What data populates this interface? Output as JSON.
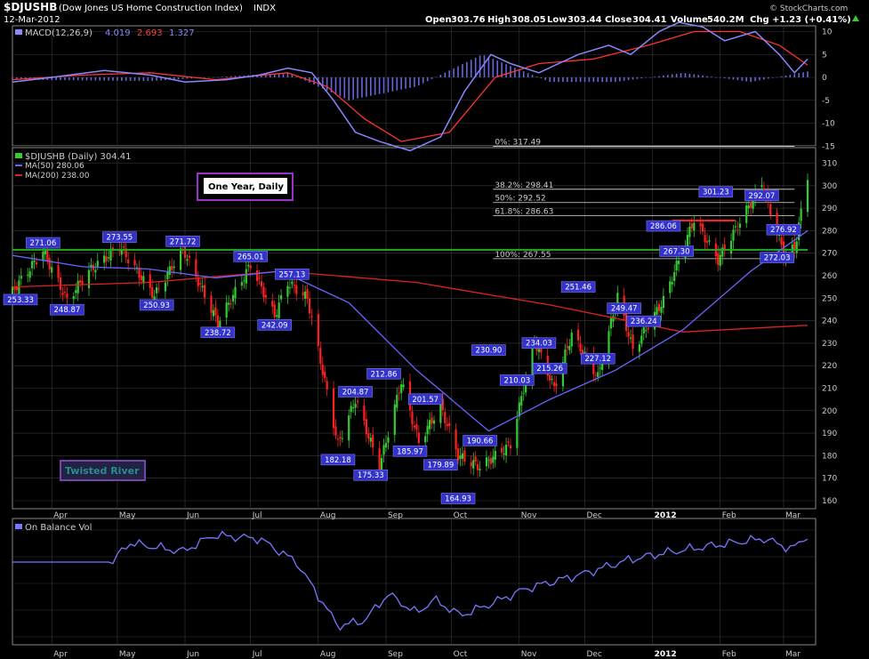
{
  "header": {
    "symbol": "$DJUSHB",
    "name": "(Dow Jones US Home Construction Index)",
    "exchange": "INDX",
    "date": "12-Mar-2012",
    "open_label": "Open",
    "open": "303.76",
    "high_label": "High",
    "high": "308.05",
    "low_label": "Low",
    "low": "303.44",
    "close_label": "Close",
    "close": "304.41",
    "volume_label": "Volume",
    "volume": "540.2M",
    "chg_label": "Chg",
    "chg": "+1.23 (+0.41%)",
    "watermark": "© StockCharts.com"
  },
  "colors": {
    "price_up": "#33cc33",
    "price_down": "#ff2020",
    "ma50": "#6666ff",
    "ma200": "#dd2222",
    "support": "#22aa22",
    "resistance": "#ff2020",
    "tag_bg": "#3333cc",
    "macd": "#8888ff",
    "signal": "#ff3333",
    "hist": "#6666dd",
    "obv": "#7777ff",
    "grid": "#3a3a3a",
    "frame": "#888888"
  },
  "chart_data": [
    {
      "type": "line",
      "panel": "macd",
      "title": "MACD(12,26,9)",
      "values_text": [
        "4.019",
        "2.693",
        "1.327"
      ],
      "ylim": [
        -18,
        13
      ],
      "y_ticks": [
        10,
        5,
        0,
        -5,
        -10,
        -15
      ],
      "series": [
        {
          "name": "MACD",
          "x": [
            "2011-03-14",
            "2011-04-01",
            "2011-04-25",
            "2011-05-16",
            "2011-06-01",
            "2011-06-20",
            "2011-07-05",
            "2011-07-18",
            "2011-07-29",
            "2011-08-08",
            "2011-08-18",
            "2011-08-29",
            "2011-09-12",
            "2011-09-26",
            "2011-10-07",
            "2011-10-19",
            "2011-10-28",
            "2011-11-10",
            "2011-11-28",
            "2011-12-12",
            "2011-12-22",
            "2012-01-04",
            "2012-01-13",
            "2012-01-24",
            "2012-02-03",
            "2012-02-17",
            "2012-02-28",
            "2012-03-06",
            "2012-03-12"
          ],
          "values": [
            -1,
            0,
            1.5,
            0.5,
            -1,
            -0.5,
            0.5,
            2,
            1,
            -5,
            -12,
            -14,
            -16,
            -13,
            -3,
            5,
            3,
            1,
            5,
            7,
            5,
            10,
            12,
            11,
            8,
            10,
            5,
            1,
            4.0
          ]
        },
        {
          "name": "Signal",
          "x": [
            "2011-03-14",
            "2011-04-15",
            "2011-05-16",
            "2011-06-15",
            "2011-07-18",
            "2011-08-05",
            "2011-08-22",
            "2011-09-08",
            "2011-09-30",
            "2011-10-21",
            "2011-11-10",
            "2011-12-05",
            "2011-12-30",
            "2012-01-20",
            "2012-02-10",
            "2012-02-28",
            "2012-03-12"
          ],
          "values": [
            -0.5,
            0.5,
            1,
            -0.5,
            1,
            -2,
            -9,
            -14,
            -12,
            0,
            3,
            4,
            7,
            10,
            10,
            7,
            2.7
          ]
        },
        {
          "name": "Histogram",
          "x": [
            "2011-03-14",
            "2011-05-16",
            "2011-07-18",
            "2011-08-15",
            "2011-09-15",
            "2011-10-15",
            "2011-11-15",
            "2011-12-15",
            "2012-01-15",
            "2012-02-15",
            "2012-03-12"
          ],
          "values": [
            -0.5,
            -0.8,
            1,
            -5,
            -2,
            5,
            -1,
            -1,
            1,
            -1,
            1.3
          ]
        }
      ]
    },
    {
      "type": "line",
      "panel": "price",
      "title": "$DJUSHB (Daily) 304.41",
      "legend": [
        "MA(50) 280.06",
        "MA(200) 238.00"
      ],
      "annotation": "One Year, Daily",
      "watermark": "Twisted River",
      "ylim": [
        157,
        313
      ],
      "y_ticks": [
        310,
        300,
        290,
        280,
        270,
        260,
        250,
        240,
        230,
        220,
        210,
        200,
        190,
        180,
        170,
        160
      ],
      "x_ticks": [
        "Apr",
        "May",
        "Jun",
        "Jul",
        "Aug",
        "Sep",
        "Oct",
        "Nov",
        "Dec",
        "2012",
        "Feb",
        "Mar"
      ],
      "series": [
        {
          "name": "$DJUSHB",
          "x": [
            "2011-03-14",
            "2011-03-28",
            "2011-04-08",
            "2011-04-18",
            "2011-05-02",
            "2011-05-18",
            "2011-05-31",
            "2011-06-16",
            "2011-07-01",
            "2011-07-12",
            "2011-07-18",
            "2011-07-27",
            "2011-08-10",
            "2011-08-18",
            "2011-08-29",
            "2011-09-08",
            "2011-09-16",
            "2011-09-26",
            "2011-10-04",
            "2011-10-14",
            "2011-10-28",
            "2011-11-08",
            "2011-11-17",
            "2011-11-25",
            "2011-12-07",
            "2011-12-16",
            "2011-12-23",
            "2012-01-06",
            "2012-01-20",
            "2012-01-31",
            "2012-02-20",
            "2012-03-01",
            "2012-03-06",
            "2012-03-12"
          ],
          "values": [
            253,
            271,
            249,
            262,
            273,
            251,
            272,
            239,
            265,
            242,
            257,
            250,
            185,
            205,
            175,
            213,
            186,
            202,
            180,
            175,
            185,
            231,
            210,
            234,
            215,
            251,
            227,
            249,
            285,
            267,
            301,
            270,
            272,
            304
          ]
        },
        {
          "name": "MA(50)",
          "x": [
            "2011-03-14",
            "2011-04-15",
            "2011-05-15",
            "2011-06-15",
            "2011-07-15",
            "2011-08-15",
            "2011-09-15",
            "2011-10-18",
            "2011-11-15",
            "2011-12-15",
            "2012-01-15",
            "2012-02-15",
            "2012-03-12"
          ],
          "values": [
            269,
            264,
            263,
            259,
            262,
            248,
            218,
            191,
            205,
            218,
            236,
            262,
            280
          ]
        },
        {
          "name": "MA(200)",
          "x": [
            "2011-03-14",
            "2011-05-15",
            "2011-07-15",
            "2011-09-15",
            "2011-11-15",
            "2012-01-15",
            "2012-03-12"
          ],
          "values": [
            255,
            257,
            262,
            257,
            247,
            235,
            238
          ]
        },
        {
          "name": "Support",
          "x": [
            "2011-03-14",
            "2012-03-12"
          ],
          "values": [
            271.5,
            271.5
          ]
        }
      ],
      "price_tags": [
        "253.33",
        "271.06",
        "248.87",
        "273.55",
        "250.93",
        "271.72",
        "238.72",
        "265.01",
        "242.09",
        "257.13",
        "204.87",
        "212.86",
        "201.57",
        "182.18",
        "175.33",
        "185.97",
        "179.89",
        "164.93",
        "190.66",
        "230.90",
        "210.03",
        "234.03",
        "215.26",
        "251.46",
        "227.12",
        "249.47",
        "236.24",
        "286.06",
        "267.30",
        "301.23",
        "292.07",
        "276.92",
        "272.03"
      ],
      "fibonacci": [
        "0%: 317.49",
        "38.2%: 298.41",
        "50%: 292.52",
        "61.8%: 286.63",
        "100%: 267.55"
      ]
    },
    {
      "type": "line",
      "panel": "obv",
      "title": "On Balance Vol",
      "series": [
        {
          "name": "On Balance Vol",
          "x": [
            "2011-03-14",
            "2011-04-29",
            "2011-05-06",
            "2011-05-31",
            "2011-06-14",
            "2011-07-05",
            "2011-07-22",
            "2011-08-10",
            "2011-08-22",
            "2011-09-02",
            "2011-09-15",
            "2011-09-23",
            "2011-10-05",
            "2011-10-18",
            "2011-11-04",
            "2011-12-02",
            "2011-12-21",
            "2012-01-05",
            "2012-01-27",
            "2012-02-21",
            "2012-03-05",
            "2012-03-12"
          ],
          "values": [
            70,
            70,
            88,
            80,
            95,
            92,
            70,
            10,
            15,
            40,
            22,
            35,
            20,
            30,
            45,
            60,
            72,
            78,
            85,
            92,
            82,
            95
          ]
        }
      ]
    }
  ]
}
